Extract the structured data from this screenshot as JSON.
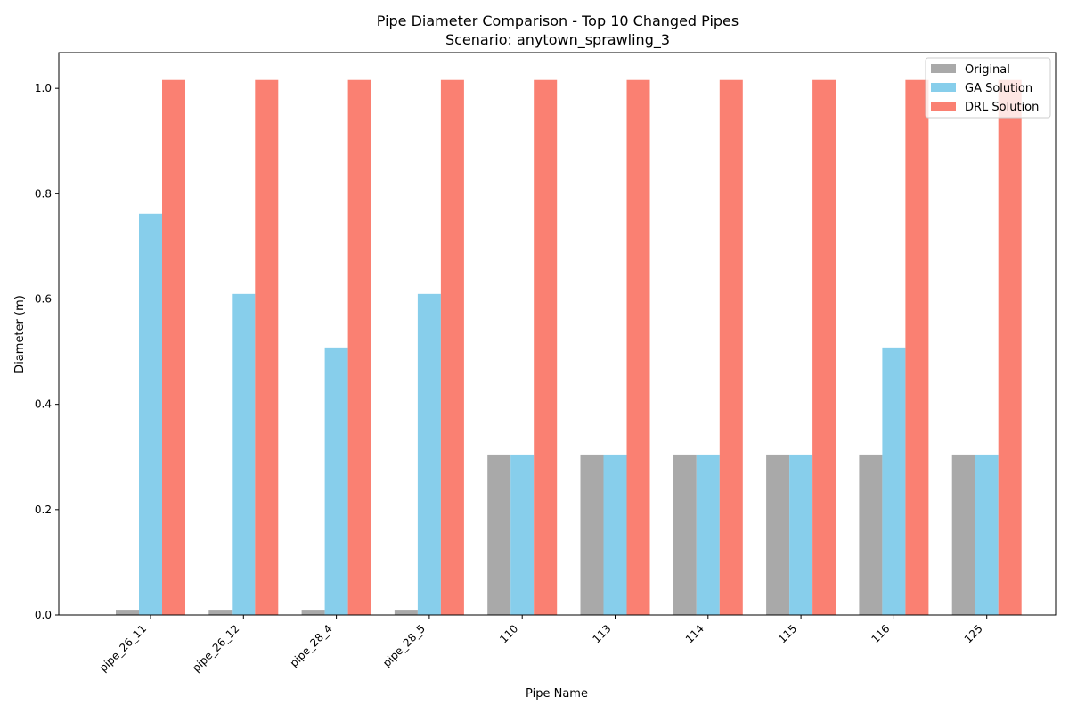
{
  "chart_data": {
    "type": "bar",
    "title": "Pipe Diameter Comparison - Top 10 Changed Pipes",
    "subtitle": "Scenario: anytown_sprawling_3",
    "xlabel": "Pipe Name",
    "ylabel": "Diameter (m)",
    "ylim": [
      0,
      1.068
    ],
    "yticks": [
      "0.0",
      "0.2",
      "0.4",
      "0.6",
      "0.8",
      "1.0"
    ],
    "grid": false,
    "legend_position": "top-right",
    "categories": [
      "pipe_26_11",
      "pipe_26_12",
      "pipe_28_4",
      "pipe_28_5",
      "110",
      "113",
      "114",
      "115",
      "116",
      "125"
    ],
    "series": [
      {
        "name": "Original",
        "color": "#a9a9a9",
        "values": [
          0.01,
          0.01,
          0.01,
          0.01,
          0.3048,
          0.3048,
          0.3048,
          0.3048,
          0.3048,
          0.3048
        ]
      },
      {
        "name": "GA Solution",
        "color": "#87ceeb",
        "values": [
          0.762,
          0.6096,
          0.508,
          0.6096,
          0.3048,
          0.3048,
          0.3048,
          0.3048,
          0.508,
          0.3048
        ]
      },
      {
        "name": "DRL Solution",
        "color": "#fa8072",
        "values": [
          1.016,
          1.016,
          1.016,
          1.016,
          1.016,
          1.016,
          1.016,
          1.016,
          1.016,
          1.016
        ]
      }
    ]
  }
}
